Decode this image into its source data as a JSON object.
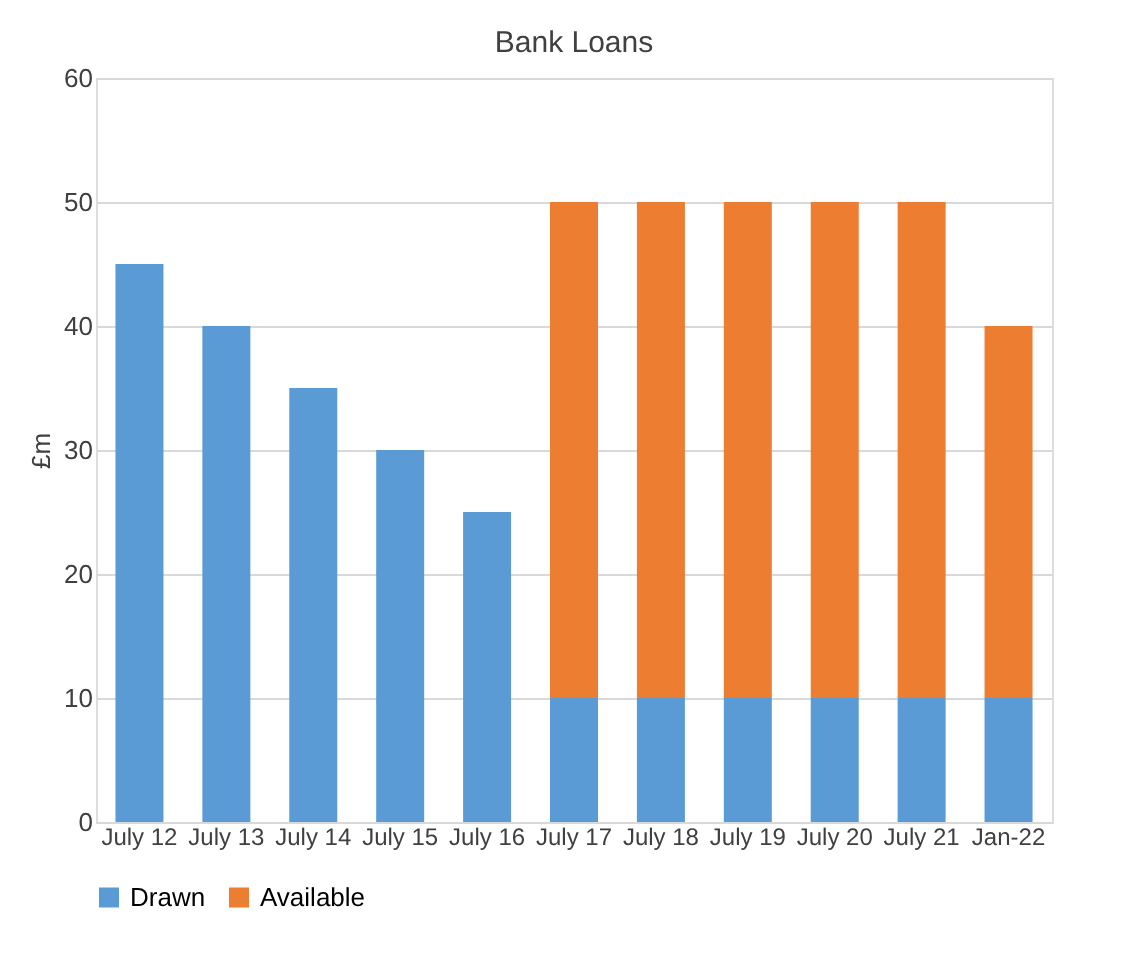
{
  "chart_data": {
    "type": "bar",
    "title": "Bank Loans",
    "ylabel": "£m",
    "categories": [
      "July 12",
      "July 13",
      "July 14",
      "July 15",
      "July 16",
      "July 17",
      "July 18",
      "July 19",
      "July 20",
      "July 21",
      "Jan-22"
    ],
    "series": [
      {
        "name": "Drawn",
        "color": "#5b9bd5",
        "values": [
          45,
          40,
          35,
          30,
          25,
          10,
          10,
          10,
          10,
          10,
          10
        ]
      },
      {
        "name": "Available",
        "color": "#ed7d31",
        "values": [
          null,
          null,
          null,
          null,
          null,
          40,
          40,
          40,
          40,
          40,
          30
        ]
      }
    ],
    "stacked": true,
    "ylim": [
      0,
      60
    ],
    "yticks": [
      0,
      10,
      20,
      30,
      40,
      50,
      60
    ],
    "grid": "y",
    "legend": "bottom"
  }
}
